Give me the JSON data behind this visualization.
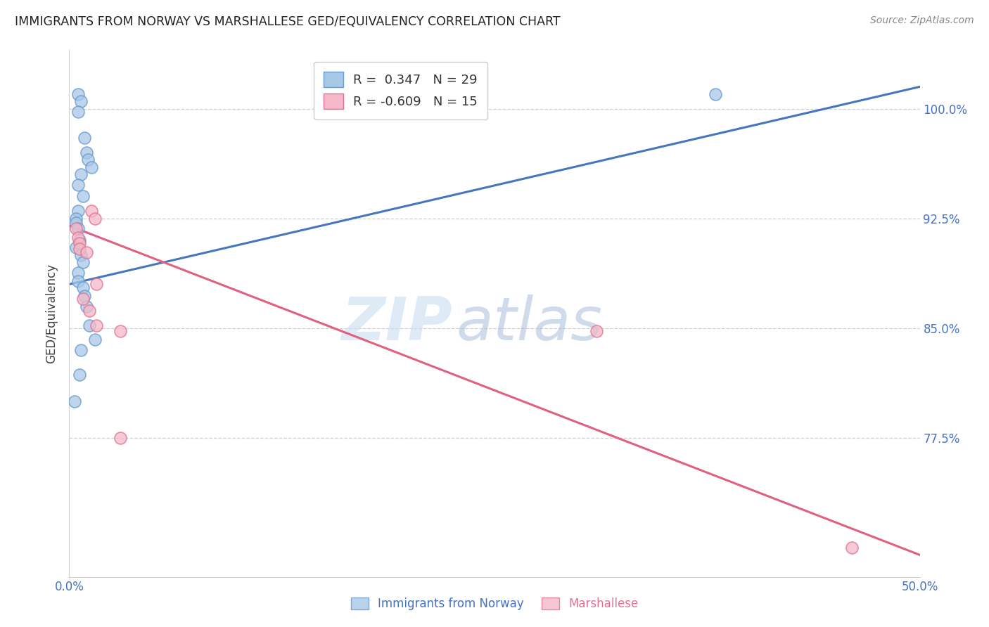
{
  "title": "IMMIGRANTS FROM NORWAY VS MARSHALLESE GED/EQUIVALENCY CORRELATION CHART",
  "source": "Source: ZipAtlas.com",
  "ylabel": "GED/Equivalency",
  "xlim": [
    0.0,
    0.5
  ],
  "ylim": [
    0.68,
    1.04
  ],
  "yticks": [
    0.775,
    0.85,
    0.925,
    1.0
  ],
  "ytick_labels_right": [
    "77.5%",
    "85.0%",
    "92.5%",
    "100.0%"
  ],
  "legend_r_blue": "R =  0.347",
  "legend_n_blue": "N = 29",
  "legend_r_pink": "R = -0.609",
  "legend_n_pink": "N = 15",
  "norway_x": [
    0.005,
    0.007,
    0.005,
    0.009,
    0.01,
    0.011,
    0.013,
    0.007,
    0.005,
    0.008,
    0.005,
    0.004,
    0.004,
    0.005,
    0.006,
    0.004,
    0.007,
    0.008,
    0.005,
    0.005,
    0.008,
    0.009,
    0.01,
    0.012,
    0.015,
    0.007,
    0.006,
    0.38,
    0.003
  ],
  "norway_y": [
    1.01,
    1.005,
    0.998,
    0.98,
    0.97,
    0.965,
    0.96,
    0.955,
    0.948,
    0.94,
    0.93,
    0.925,
    0.922,
    0.918,
    0.91,
    0.905,
    0.9,
    0.895,
    0.888,
    0.882,
    0.878,
    0.872,
    0.865,
    0.852,
    0.842,
    0.835,
    0.818,
    1.01,
    0.8
  ],
  "marshallese_x": [
    0.004,
    0.005,
    0.006,
    0.006,
    0.01,
    0.013,
    0.015,
    0.016,
    0.008,
    0.012,
    0.016,
    0.03,
    0.03,
    0.31,
    0.46
  ],
  "marshallese_y": [
    0.918,
    0.912,
    0.908,
    0.904,
    0.902,
    0.93,
    0.925,
    0.88,
    0.87,
    0.862,
    0.852,
    0.848,
    0.775,
    0.848,
    0.7
  ],
  "blue_line_x": [
    0.0,
    0.5
  ],
  "blue_line_y": [
    0.88,
    1.015
  ],
  "pink_line_x": [
    0.0,
    0.5
  ],
  "pink_line_y": [
    0.92,
    0.695
  ],
  "watermark_zip": "ZIP",
  "watermark_atlas": "atlas",
  "blue_dot_color": "#a8c8e8",
  "blue_edge_color": "#6699cc",
  "pink_dot_color": "#f4b8c8",
  "pink_edge_color": "#e07090",
  "blue_line_color": "#4477bb",
  "pink_line_color": "#e06080",
  "grid_color": "#d0d0d0",
  "title_color": "#222222",
  "axis_tick_color": "#4472c4",
  "source_color": "#888888"
}
